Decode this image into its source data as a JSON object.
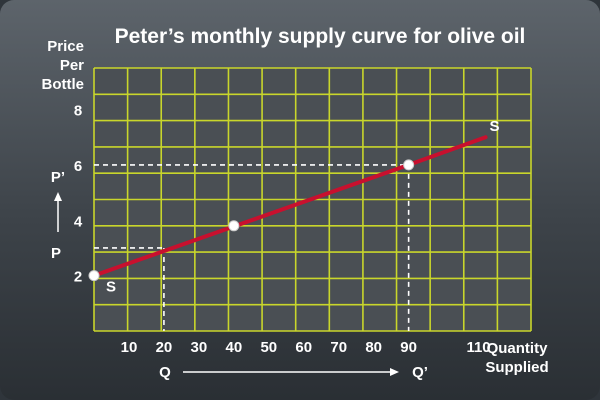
{
  "chart_data": {
    "type": "line",
    "title": "Peter’s monthly supply curve for olive oil",
    "ylabel": [
      "Price",
      "Per",
      "Bottle"
    ],
    "xlabel": [
      "Quantity",
      "Supplied"
    ],
    "x_ticks": [
      10,
      20,
      30,
      40,
      50,
      60,
      70,
      80,
      90,
      110
    ],
    "y_ticks": [
      2,
      4,
      6,
      8
    ],
    "xlim": [
      0,
      125
    ],
    "ylim": [
      0,
      9.5
    ],
    "grid": true,
    "series": [
      {
        "name": "S",
        "x": [
          0,
          90,
          112
        ],
        "y": [
          2,
          6,
          7
        ]
      }
    ],
    "points": [
      {
        "x": 0,
        "y": 2
      },
      {
        "x": 40,
        "y": 3.8
      },
      {
        "x": 90,
        "y": 6
      }
    ],
    "reference_lines": [
      {
        "label_x": "Q",
        "label_y": "P",
        "x": 20,
        "y": 3
      },
      {
        "label_x": "Q’",
        "label_y": "P’",
        "x": 90,
        "y": 6
      }
    ],
    "curve_label": "S",
    "colors": {
      "curve": "#c8102e",
      "grid": "#c9d62b",
      "plot_bg": "#4a4f54",
      "text": "#ffffff"
    }
  }
}
